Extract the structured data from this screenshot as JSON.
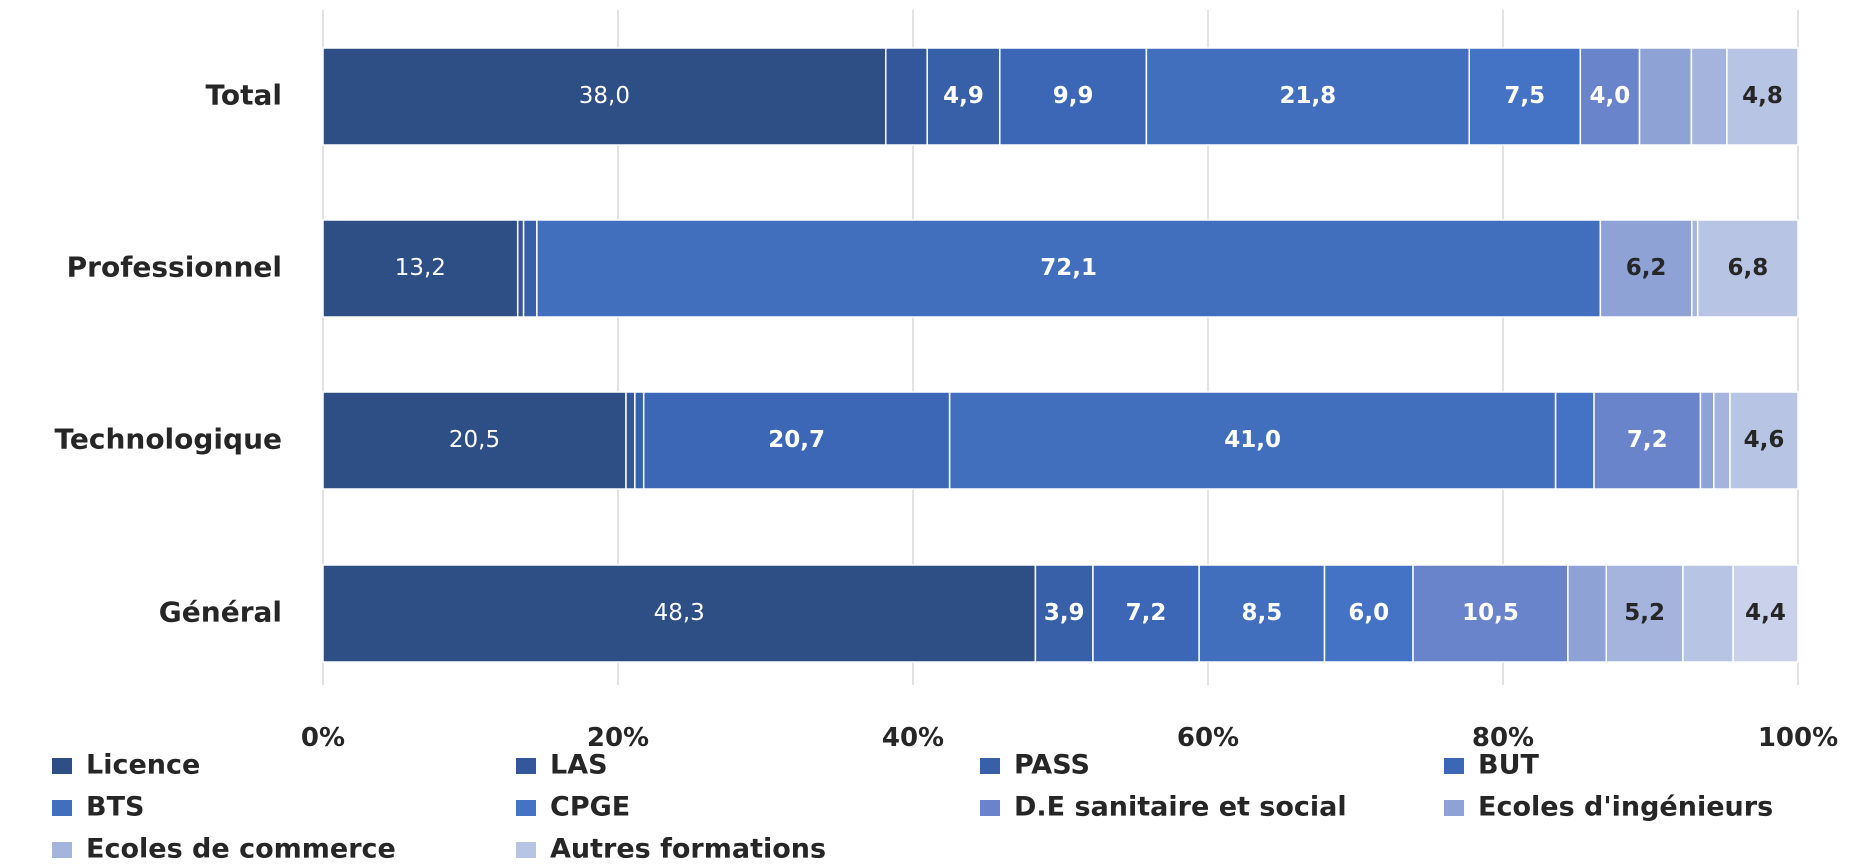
{
  "chart_data": {
    "type": "bar",
    "orientation": "horizontal",
    "stacked": true,
    "percent_stacked": true,
    "title": "",
    "xlabel": "",
    "ylabel": "",
    "categories": [
      "Total",
      "Professionnel",
      "Technologique",
      "Général"
    ],
    "x_ticks": [
      "0%",
      "20%",
      "40%",
      "60%",
      "80%",
      "100%"
    ],
    "xlim": [
      0,
      100
    ],
    "grid": true,
    "legend_position": "bottom",
    "series": [
      {
        "name": "Licence",
        "color": "#2e4e86",
        "values": [
          38.0,
          13.2,
          20.5,
          48.3
        ],
        "labels": [
          "38,0",
          "13,2",
          "20,5",
          "48,3"
        ]
      },
      {
        "name": "LAS",
        "color": "#33579a",
        "values": [
          2.8,
          0.4,
          0.6,
          0.0
        ],
        "labels": [
          "",
          "",
          "",
          ""
        ]
      },
      {
        "name": "PASS",
        "color": "#3760a9",
        "values": [
          4.9,
          0.9,
          0.6,
          3.9
        ],
        "labels": [
          "4,9",
          "",
          "",
          "3,9"
        ]
      },
      {
        "name": "BUT",
        "color": "#3b67b6",
        "values": [
          9.9,
          0.0,
          20.7,
          7.2
        ],
        "labels": [
          "9,9",
          "",
          "20,7",
          "7,2"
        ]
      },
      {
        "name": "BTS",
        "color": "#416fbe",
        "values": [
          21.8,
          72.1,
          41.0,
          8.5
        ],
        "labels": [
          "21,8",
          "72,1",
          "41,0",
          "8,5"
        ]
      },
      {
        "name": "CPGE",
        "color": "#4472c4",
        "values": [
          7.5,
          0.0,
          2.6,
          6.0
        ],
        "labels": [
          "7,5",
          "",
          "",
          "6,0"
        ]
      },
      {
        "name": "D.E sanitaire et social",
        "color": "#6984cb",
        "values": [
          4.0,
          0.0,
          7.2,
          10.5
        ],
        "labels": [
          "4,0",
          "",
          "7,2",
          "10,5"
        ]
      },
      {
        "name": "Ecoles d'ingénieurs",
        "color": "#8fa2d6",
        "values": [
          3.5,
          6.2,
          0.9,
          2.6
        ],
        "labels": [
          "",
          "6,2",
          "",
          ""
        ]
      },
      {
        "name": "Ecoles de commerce",
        "color": "#a4b4dd",
        "values": [
          2.4,
          0.4,
          1.1,
          5.2
        ],
        "labels": [
          "",
          "",
          "",
          "5,2"
        ]
      },
      {
        "name": "Autres formations",
        "color": "#b7c4e4",
        "values": [
          4.8,
          6.8,
          4.6,
          3.4
        ],
        "labels": [
          "4,8",
          "6,8",
          "4,6",
          ""
        ]
      },
      {
        "name": "",
        "color": "#c9d2ea",
        "values": [
          0.0,
          0.0,
          0.0,
          4.4
        ],
        "labels": [
          "",
          "",
          "",
          "4,4"
        ]
      }
    ]
  }
}
